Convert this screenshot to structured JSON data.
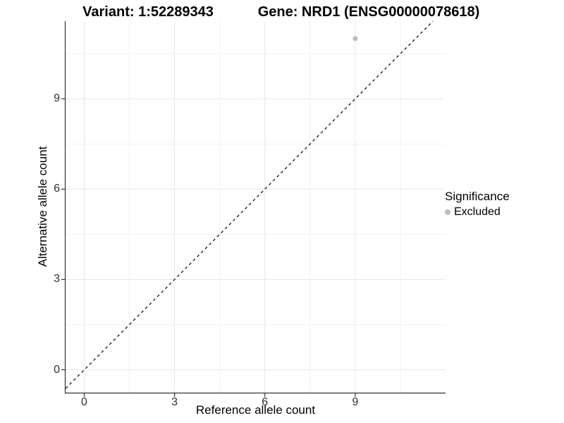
{
  "titles": {
    "left": "Variant: 1:52289343",
    "right": "Gene: NRD1 (ENSG00000078618)"
  },
  "legend": {
    "title": "Significance",
    "items": [
      {
        "label": "Excluded",
        "color": "#bdbdbd"
      }
    ]
  },
  "chart_data": {
    "type": "scatter",
    "title": "Variant: 1:52289343  Gene: NRD1 (ENSG00000078618)",
    "xlabel": "Reference allele count",
    "ylabel": "Alternative allele count",
    "points": [
      {
        "x": 9,
        "y": 11,
        "series": "Excluded"
      }
    ],
    "point_color": "#bdbdbd",
    "point_radius": 3.5,
    "x_ticks": [
      0,
      3,
      6,
      9
    ],
    "y_ticks": [
      0,
      3,
      6,
      9
    ],
    "x_minor_ticks": [
      1.5,
      4.5,
      7.5,
      10.5
    ],
    "y_minor_ticks": [
      1.5,
      4.5,
      7.5,
      10.5
    ],
    "xlim": [
      -0.62,
      12.0
    ],
    "ylim": [
      -0.76,
      11.58
    ],
    "grid": true,
    "legend_position": "right",
    "reference_line": {
      "type": "identity",
      "style": "dashed",
      "color": "#000000"
    },
    "colors": {
      "grid_major": "#e6e6e6",
      "grid_minor": "#f2f2f2",
      "axis_line": "#333333",
      "tick_mark": "#333333"
    }
  }
}
